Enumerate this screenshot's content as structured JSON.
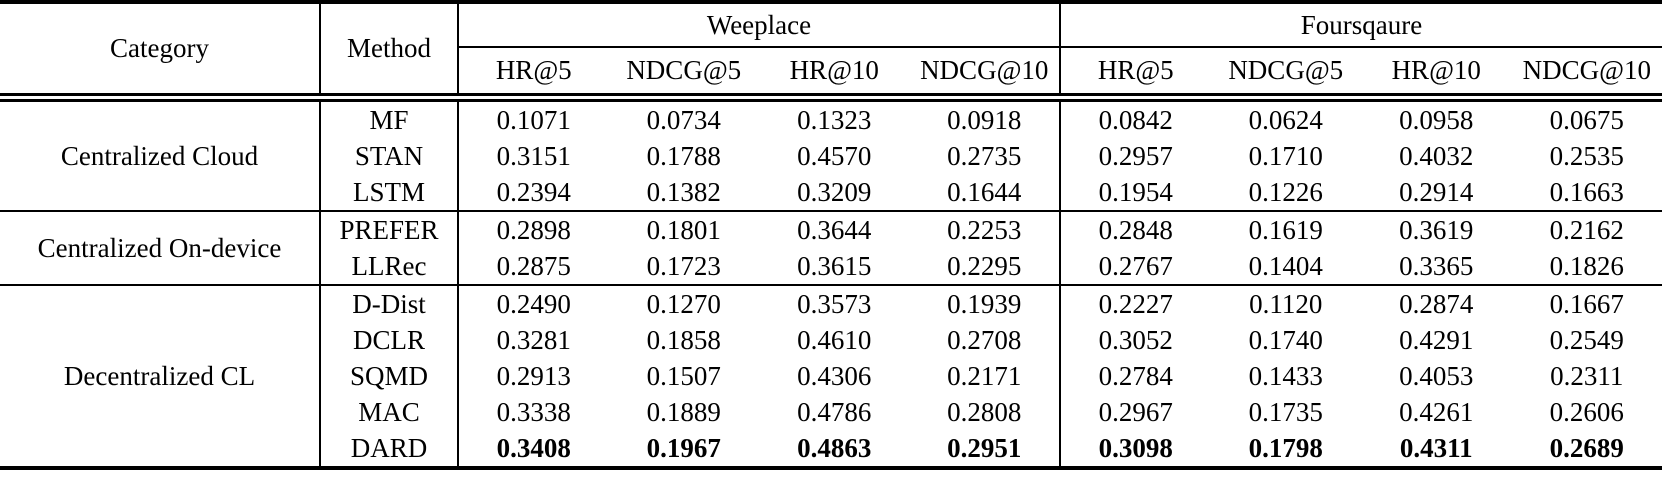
{
  "table": {
    "header": {
      "category": "Category",
      "method": "Method"
    },
    "datasets": [
      {
        "name": "Weeplace",
        "metrics": [
          "HR@5",
          "NDCG@5",
          "HR@10",
          "NDCG@10"
        ]
      },
      {
        "name": "Foursqaure",
        "metrics": [
          "HR@5",
          "NDCG@5",
          "HR@10",
          "NDCG@10"
        ]
      }
    ],
    "groups": [
      {
        "category": "Centralized Cloud",
        "rows": [
          {
            "method": "MF",
            "bold": false,
            "weeplace": [
              "0.1071",
              "0.0734",
              "0.1323",
              "0.0918"
            ],
            "foursqaure": [
              "0.0842",
              "0.0624",
              "0.0958",
              "0.0675"
            ]
          },
          {
            "method": "STAN",
            "bold": false,
            "weeplace": [
              "0.3151",
              "0.1788",
              "0.4570",
              "0.2735"
            ],
            "foursqaure": [
              "0.2957",
              "0.1710",
              "0.4032",
              "0.2535"
            ]
          },
          {
            "method": "LSTM",
            "bold": false,
            "weeplace": [
              "0.2394",
              "0.1382",
              "0.3209",
              "0.1644"
            ],
            "foursqaure": [
              "0.1954",
              "0.1226",
              "0.2914",
              "0.1663"
            ]
          }
        ]
      },
      {
        "category": "Centralized On-device",
        "rows": [
          {
            "method": "PREFER",
            "bold": false,
            "weeplace": [
              "0.2898",
              "0.1801",
              "0.3644",
              "0.2253"
            ],
            "foursqaure": [
              "0.2848",
              "0.1619",
              "0.3619",
              "0.2162"
            ]
          },
          {
            "method": "LLRec",
            "bold": false,
            "weeplace": [
              "0.2875",
              "0.1723",
              "0.3615",
              "0.2295"
            ],
            "foursqaure": [
              "0.2767",
              "0.1404",
              "0.3365",
              "0.1826"
            ]
          }
        ]
      },
      {
        "category": "Decentralized CL",
        "rows": [
          {
            "method": "D-Dist",
            "bold": false,
            "weeplace": [
              "0.2490",
              "0.1270",
              "0.3573",
              "0.1939"
            ],
            "foursqaure": [
              "0.2227",
              "0.1120",
              "0.2874",
              "0.1667"
            ]
          },
          {
            "method": "DCLR",
            "bold": false,
            "weeplace": [
              "0.3281",
              "0.1858",
              "0.4610",
              "0.2708"
            ],
            "foursqaure": [
              "0.3052",
              "0.1740",
              "0.4291",
              "0.2549"
            ]
          },
          {
            "method": "SQMD",
            "bold": false,
            "weeplace": [
              "0.2913",
              "0.1507",
              "0.4306",
              "0.2171"
            ],
            "foursqaure": [
              "0.2784",
              "0.1433",
              "0.4053",
              "0.2311"
            ]
          },
          {
            "method": "MAC",
            "bold": false,
            "weeplace": [
              "0.3338",
              "0.1889",
              "0.4786",
              "0.2808"
            ],
            "foursqaure": [
              "0.2967",
              "0.1735",
              "0.4261",
              "0.2606"
            ]
          },
          {
            "method": "DARD",
            "bold": true,
            "weeplace": [
              "0.3408",
              "0.1967",
              "0.4863",
              "0.2951"
            ],
            "foursqaure": [
              "0.3098",
              "0.1798",
              "0.4311",
              "0.2689"
            ]
          }
        ]
      }
    ],
    "colors": {
      "text": "#000000",
      "background": "#ffffff",
      "rule": "#000000"
    }
  }
}
